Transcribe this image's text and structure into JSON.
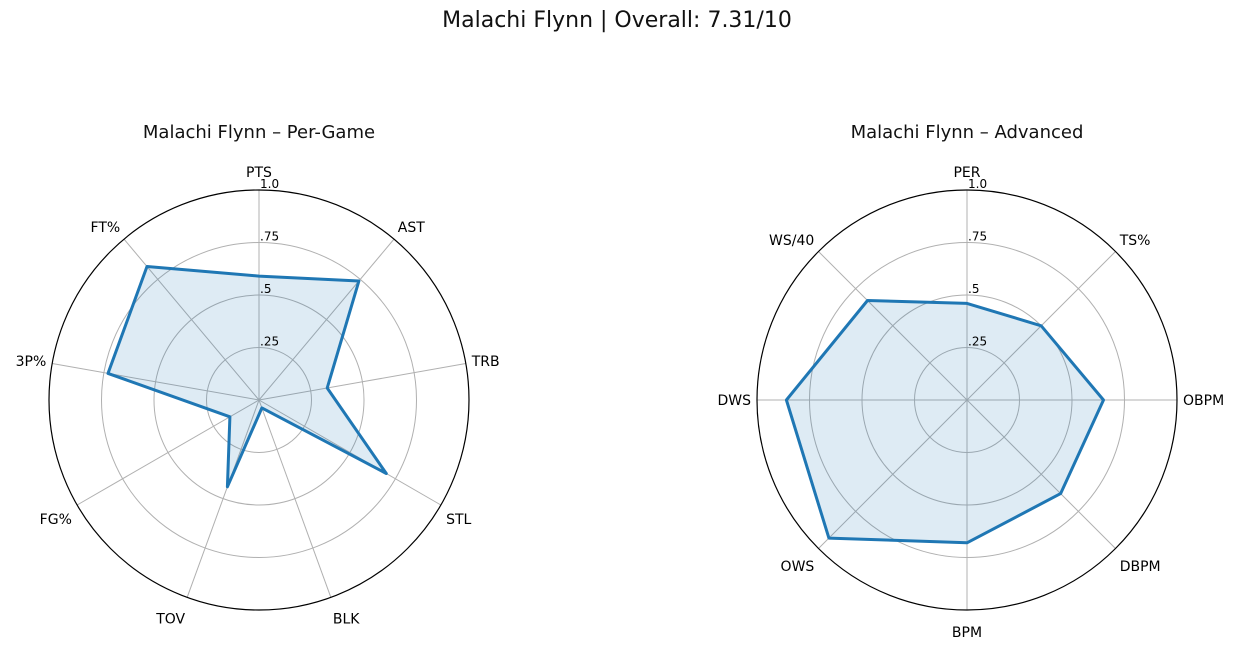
{
  "suptitle": "Malachi Flynn | Overall: 7.31/10",
  "chart_data": [
    {
      "type": "radar",
      "title": "Malachi Flynn – Per-Game",
      "categories": [
        "PTS",
        "AST",
        "TRB",
        "STL",
        "BLK",
        "TOV",
        "FG%",
        "3P%",
        "FT%"
      ],
      "values": [
        0.59,
        0.74,
        0.33,
        0.7,
        0.04,
        0.44,
        0.16,
        0.73,
        0.83
      ],
      "rlim": [
        0,
        1
      ],
      "rticks": [
        ".25",
        ".5",
        ".75",
        "1.0"
      ],
      "color": "#1f77b4"
    },
    {
      "type": "radar",
      "title": "Malachi Flynn – Advanced",
      "categories": [
        "PER",
        "TS%",
        "OBPM",
        "DBPM",
        "BPM",
        "OWS",
        "DWS",
        "WS/40"
      ],
      "values": [
        0.46,
        0.5,
        0.65,
        0.63,
        0.68,
        0.93,
        0.86,
        0.67
      ],
      "rlim": [
        0,
        1
      ],
      "rticks": [
        ".25",
        ".5",
        ".75",
        "1.0"
      ],
      "color": "#1f77b4"
    }
  ]
}
